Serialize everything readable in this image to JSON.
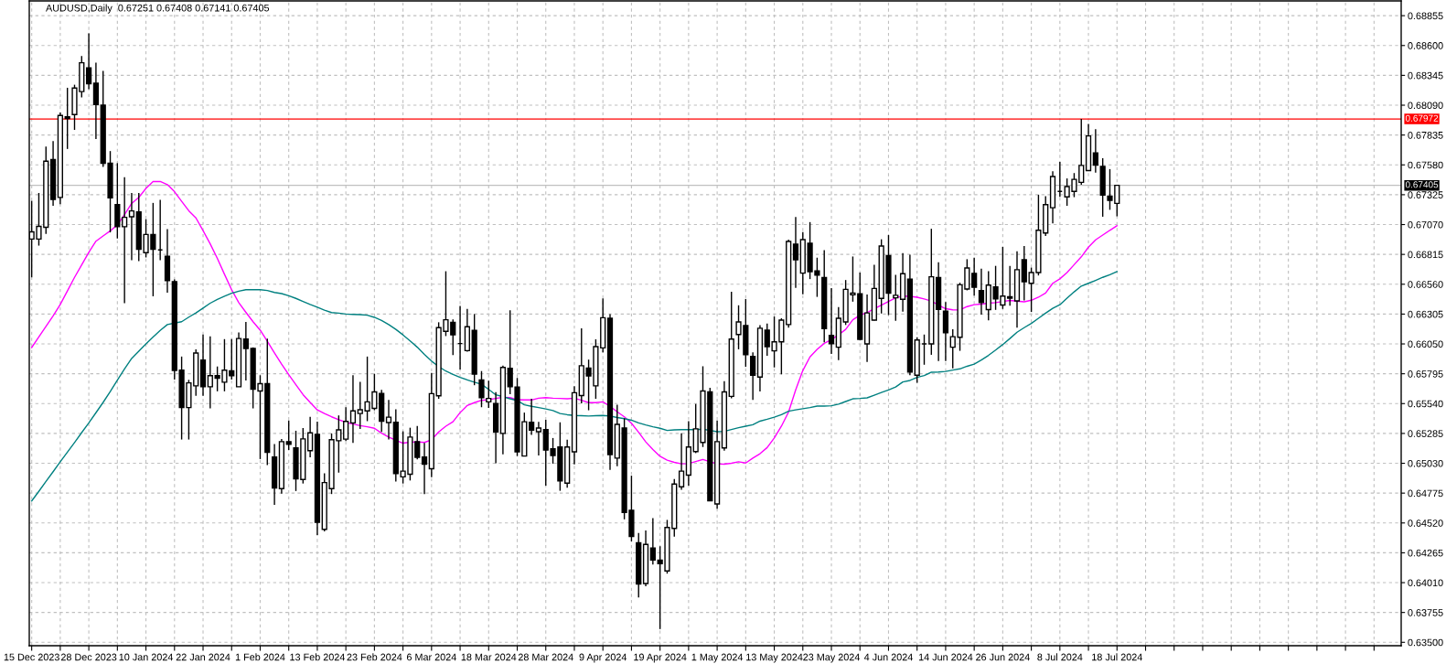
{
  "chart_data": {
    "type": "candlestick",
    "annotations": [
      "AUDUSD,Daily  0.67251 0.67408 0.67141 0.67405"
    ],
    "categories": [
      "15 Dec 2023",
      null,
      null,
      null,
      null,
      null,
      null,
      null,
      "28 Dec 2023",
      null,
      null,
      null,
      null,
      null,
      null,
      null,
      "10 Jan 2024",
      null,
      null,
      null,
      null,
      null,
      null,
      null,
      "22 Jan 2024",
      null,
      null,
      null,
      null,
      null,
      null,
      null,
      "1 Feb 2024",
      null,
      null,
      null,
      null,
      null,
      null,
      null,
      "13 Feb 2024",
      null,
      null,
      null,
      null,
      null,
      null,
      null,
      "23 Feb 2024",
      null,
      null,
      null,
      null,
      null,
      null,
      null,
      "6 Mar 2024",
      null,
      null,
      null,
      null,
      null,
      null,
      null,
      "18 Mar 2024",
      null,
      null,
      null,
      null,
      null,
      null,
      null,
      "28 Mar 2024",
      null,
      null,
      null,
      null,
      null,
      null,
      null,
      "9 Apr 2024",
      null,
      null,
      null,
      null,
      null,
      null,
      null,
      "19 Apr 2024",
      null,
      null,
      null,
      null,
      null,
      null,
      null,
      "1 May 2024",
      null,
      null,
      null,
      null,
      null,
      null,
      null,
      "13 May 2024",
      null,
      null,
      null,
      null,
      null,
      null,
      null,
      "23 May 2024",
      null,
      null,
      null,
      null,
      null,
      null,
      null,
      "4 Jun 2024",
      null,
      null,
      null,
      null,
      null,
      null,
      null,
      "14 Jun 2024",
      null,
      null,
      null,
      null,
      null,
      null,
      null,
      "26 Jun 2024",
      null,
      null,
      null,
      null,
      null,
      null,
      null,
      "8 Jul 2024",
      null,
      null,
      null,
      null,
      null,
      null,
      null,
      "18 Jul 2024",
      null,
      null,
      null,
      null,
      null,
      null,
      null,
      null,
      null,
      null,
      null,
      null,
      null,
      null,
      null,
      null,
      null,
      null,
      null,
      null,
      null,
      null,
      null,
      null,
      null,
      null,
      null,
      null,
      null,
      null,
      null,
      null,
      null,
      null,
      null,
      null,
      null,
      null,
      null
    ],
    "ohlc": [
      [
        0.66946,
        0.67273,
        0.66619,
        0.67008
      ],
      [
        0.66946,
        0.6734,
        0.6689,
        0.67054
      ],
      [
        0.67047,
        0.67737,
        0.6699,
        0.67611
      ],
      [
        0.67626,
        0.67783,
        0.6723,
        0.67284
      ],
      [
        0.67302,
        0.68028,
        0.67245,
        0.68002
      ],
      [
        0.6799,
        0.68239,
        0.67716,
        0.67977
      ],
      [
        0.6801,
        0.68265,
        0.67879,
        0.68237
      ],
      [
        0.68206,
        0.6851,
        0.68157,
        0.68453
      ],
      [
        0.68409,
        0.68703,
        0.68226,
        0.68273
      ],
      [
        0.68278,
        0.68453,
        0.67801,
        0.68095
      ],
      [
        0.6809,
        0.68384,
        0.67562,
        0.67593
      ],
      [
        0.67595,
        0.67698,
        0.67003,
        0.67299
      ],
      [
        0.6724,
        0.67595,
        0.66951,
        0.67052
      ],
      [
        0.67052,
        0.67474,
        0.66398,
        0.67132
      ],
      [
        0.67137,
        0.6734,
        0.66766,
        0.67186
      ],
      [
        0.67178,
        0.6734,
        0.66758,
        0.66859
      ],
      [
        0.6683,
        0.67116,
        0.66789,
        0.66985
      ],
      [
        0.66985,
        0.67255,
        0.66457,
        0.66859
      ],
      [
        0.66853,
        0.67281,
        0.66766,
        0.66853
      ],
      [
        0.66799,
        0.67031,
        0.66488,
        0.66591
      ],
      [
        0.66583,
        0.66601,
        0.65746,
        0.65823
      ],
      [
        0.65826,
        0.65942,
        0.65233,
        0.65506
      ],
      [
        0.65506,
        0.65743,
        0.65233,
        0.65717
      ],
      [
        0.65692,
        0.66003,
        0.65607,
        0.65972
      ],
      [
        0.65911,
        0.6613,
        0.65607,
        0.65684
      ],
      [
        0.65684,
        0.66114,
        0.65499,
        0.65779
      ],
      [
        0.65779,
        0.65857,
        0.65645,
        0.65756
      ],
      [
        0.65723,
        0.66091,
        0.65645,
        0.65826
      ],
      [
        0.65821,
        0.66091,
        0.65746,
        0.65779
      ],
      [
        0.65684,
        0.66148,
        0.65684,
        0.66096
      ],
      [
        0.66091,
        0.66238,
        0.65738,
        0.66011
      ],
      [
        0.66011,
        0.6602,
        0.65499,
        0.65663
      ],
      [
        0.65648,
        0.65782,
        0.65066,
        0.6571
      ],
      [
        0.6571,
        0.66096,
        0.65014,
        0.65123
      ],
      [
        0.65084,
        0.65195,
        0.64674,
        0.64819
      ],
      [
        0.64813,
        0.65238,
        0.6477,
        0.65215
      ],
      [
        0.65215,
        0.65396,
        0.65143,
        0.65192
      ],
      [
        0.65161,
        0.65308,
        0.64793,
        0.64896
      ],
      [
        0.64891,
        0.65331,
        0.64857,
        0.65238
      ],
      [
        0.65138,
        0.65427,
        0.65081,
        0.6529
      ],
      [
        0.65277,
        0.65385,
        0.64417,
        0.64525
      ],
      [
        0.64466,
        0.64945,
        0.64448,
        0.64865
      ],
      [
        0.64813,
        0.65285,
        0.64767,
        0.65231
      ],
      [
        0.65223,
        0.65439,
        0.6495,
        0.65316
      ],
      [
        0.65236,
        0.65509,
        0.6522,
        0.65388
      ],
      [
        0.65375,
        0.65782,
        0.65205,
        0.65478
      ],
      [
        0.65455,
        0.65725,
        0.65323,
        0.65488
      ],
      [
        0.65478,
        0.65942,
        0.6539,
        0.65555
      ],
      [
        0.65499,
        0.65795,
        0.65483,
        0.6564
      ],
      [
        0.65627,
        0.65658,
        0.65298,
        0.6539
      ],
      [
        0.65378,
        0.65571,
        0.65233,
        0.65424
      ],
      [
        0.6538,
        0.65491,
        0.64873,
        0.64942
      ],
      [
        0.64914,
        0.65303,
        0.64857,
        0.64963
      ],
      [
        0.64937,
        0.65334,
        0.64883,
        0.65254
      ],
      [
        0.65215,
        0.65349,
        0.65063,
        0.65081
      ],
      [
        0.65084,
        0.65205,
        0.64767,
        0.65022
      ],
      [
        0.64983,
        0.65803,
        0.64911,
        0.65625
      ],
      [
        0.65607,
        0.66235,
        0.65581,
        0.66189
      ],
      [
        0.66158,
        0.66671,
        0.66117,
        0.66256
      ],
      [
        0.66235,
        0.66259,
        0.65955,
        0.66127
      ],
      [
        0.66053,
        0.66375,
        0.65831,
        0.66053
      ],
      [
        0.65993,
        0.66349,
        0.65983,
        0.66197
      ],
      [
        0.66166,
        0.66305,
        0.65697,
        0.65792
      ],
      [
        0.65741,
        0.65818,
        0.65509,
        0.65591
      ],
      [
        0.65555,
        0.65736,
        0.65504,
        0.65584
      ],
      [
        0.6554,
        0.65638,
        0.6503,
        0.65298
      ],
      [
        0.65285,
        0.65864,
        0.65107,
        0.65849
      ],
      [
        0.65841,
        0.66338,
        0.6562,
        0.65684
      ],
      [
        0.65682,
        0.65759,
        0.65092,
        0.65128
      ],
      [
        0.65092,
        0.65463,
        0.65092,
        0.65385
      ],
      [
        0.6538,
        0.65581,
        0.65272,
        0.65313
      ],
      [
        0.653,
        0.65383,
        0.65097,
        0.65331
      ],
      [
        0.65318,
        0.65401,
        0.64839,
        0.65143
      ],
      [
        0.65154,
        0.65246,
        0.65027,
        0.65097
      ],
      [
        0.65169,
        0.6538,
        0.64795,
        0.6488
      ],
      [
        0.6486,
        0.65231,
        0.64821,
        0.65169
      ],
      [
        0.65128,
        0.65689,
        0.6502,
        0.65633
      ],
      [
        0.65609,
        0.66184,
        0.65542,
        0.65864
      ],
      [
        0.65844,
        0.65916,
        0.65483,
        0.65777
      ],
      [
        0.65692,
        0.66089,
        0.65581,
        0.66027
      ],
      [
        0.66016,
        0.66439,
        0.65978,
        0.66274
      ],
      [
        0.66269,
        0.66305,
        0.64973,
        0.65105
      ],
      [
        0.65074,
        0.6553,
        0.65004,
        0.65362
      ],
      [
        0.65331,
        0.65414,
        0.64551,
        0.6461
      ],
      [
        0.64628,
        0.64924,
        0.64363,
        0.64404
      ],
      [
        0.6435,
        0.64435,
        0.63884,
        0.63999
      ],
      [
        0.64002,
        0.64455,
        0.63979,
        0.64337
      ],
      [
        0.64306,
        0.64561,
        0.64164,
        0.64203
      ],
      [
        0.64203,
        0.64321,
        0.63613,
        0.64172
      ],
      [
        0.6411,
        0.64546,
        0.64087,
        0.64481
      ],
      [
        0.64473,
        0.64896,
        0.64404,
        0.64852
      ],
      [
        0.64829,
        0.65287,
        0.64803,
        0.64963
      ],
      [
        0.64929,
        0.6539,
        0.64839,
        0.65169
      ],
      [
        0.6513,
        0.65537,
        0.65117,
        0.65324
      ],
      [
        0.65208,
        0.65859,
        0.65169,
        0.65648
      ],
      [
        0.6564,
        0.65676,
        0.6471,
        0.6471
      ],
      [
        0.64682,
        0.65396,
        0.64641,
        0.65215
      ],
      [
        0.65161,
        0.65731,
        0.65138,
        0.6564
      ],
      [
        0.65602,
        0.66496,
        0.65586,
        0.66091
      ],
      [
        0.6613,
        0.6638,
        0.66004,
        0.66238
      ],
      [
        0.66207,
        0.66434,
        0.65854,
        0.65957
      ],
      [
        0.65944,
        0.65978,
        0.65571,
        0.65782
      ],
      [
        0.65767,
        0.6621,
        0.65643,
        0.66184
      ],
      [
        0.66168,
        0.66225,
        0.65949,
        0.66027
      ],
      [
        0.65991,
        0.66284,
        0.65849,
        0.66068
      ],
      [
        0.66068,
        0.66269,
        0.6579,
        0.66253
      ],
      [
        0.66215,
        0.66941,
        0.66189,
        0.66926
      ],
      [
        0.66903,
        0.67134,
        0.66529,
        0.66769
      ],
      [
        0.66655,
        0.67006,
        0.66475,
        0.66941
      ],
      [
        0.6691,
        0.67091,
        0.66604,
        0.66668
      ],
      [
        0.66673,
        0.66787,
        0.66452,
        0.66637
      ],
      [
        0.66617,
        0.66851,
        0.66063,
        0.66181
      ],
      [
        0.66122,
        0.66526,
        0.65965,
        0.66052
      ],
      [
        0.66022,
        0.66364,
        0.65911,
        0.66269
      ],
      [
        0.66238,
        0.66596,
        0.66212,
        0.66516
      ],
      [
        0.6647,
        0.66797,
        0.66411,
        0.66485
      ],
      [
        0.66478,
        0.6666,
        0.66085,
        0.66089
      ],
      [
        0.6605,
        0.66472,
        0.65895,
        0.66315
      ],
      [
        0.66253,
        0.66727,
        0.6625,
        0.66524
      ],
      [
        0.66439,
        0.66944,
        0.6631,
        0.66887
      ],
      [
        0.66805,
        0.6698,
        0.66297,
        0.66483
      ],
      [
        0.66444,
        0.6664,
        0.66248,
        0.66465
      ],
      [
        0.66431,
        0.66825,
        0.66326,
        0.6665
      ],
      [
        0.66604,
        0.66812,
        0.65782,
        0.6581
      ],
      [
        0.65782,
        0.66107,
        0.65718,
        0.66083
      ],
      [
        0.6605,
        0.6613,
        0.65872,
        0.6605
      ],
      [
        0.6605,
        0.67034,
        0.65957,
        0.66624
      ],
      [
        0.66617,
        0.66748,
        0.65903,
        0.66344
      ],
      [
        0.66331,
        0.66408,
        0.65903,
        0.66145
      ],
      [
        0.66022,
        0.66176,
        0.65841,
        0.66112
      ],
      [
        0.66107,
        0.66573,
        0.65991,
        0.66555
      ],
      [
        0.66519,
        0.66774,
        0.66508,
        0.66699
      ],
      [
        0.66653,
        0.66787,
        0.66462,
        0.66534
      ],
      [
        0.66506,
        0.66694,
        0.663,
        0.66403
      ],
      [
        0.66343,
        0.66671,
        0.66251,
        0.66552
      ],
      [
        0.66537,
        0.66717,
        0.66341,
        0.66434
      ],
      [
        0.66382,
        0.66879,
        0.66349,
        0.66459
      ],
      [
        0.66454,
        0.66717,
        0.66377,
        0.66441
      ],
      [
        0.66418,
        0.66841,
        0.66189,
        0.66684
      ],
      [
        0.66769,
        0.66887,
        0.66421,
        0.66581
      ],
      [
        0.66568,
        0.66702,
        0.66323,
        0.6666
      ],
      [
        0.6666,
        0.67325,
        0.66635,
        0.67021
      ],
      [
        0.66998,
        0.67312,
        0.66972,
        0.6724
      ],
      [
        0.67214,
        0.67526,
        0.6708,
        0.6748
      ],
      [
        0.67353,
        0.67606,
        0.67307,
        0.67353
      ],
      [
        0.67307,
        0.67464,
        0.6723,
        0.67395
      ],
      [
        0.67353,
        0.6751,
        0.67304,
        0.67456
      ],
      [
        0.67431,
        0.67972,
        0.6741,
        0.67575
      ],
      [
        0.67531,
        0.6793,
        0.67531,
        0.67827
      ],
      [
        0.67683,
        0.67884,
        0.67513,
        0.67577
      ],
      [
        0.67567,
        0.67637,
        0.67137,
        0.67322
      ],
      [
        0.67312,
        0.67544,
        0.67196,
        0.67276
      ],
      [
        0.67251,
        0.67408,
        0.67141,
        0.67405
      ],
      null,
      null,
      null,
      null,
      null,
      null,
      null,
      null,
      null,
      null,
      null,
      null,
      null,
      null,
      null,
      null,
      null,
      null,
      null,
      null,
      null,
      null,
      null,
      null,
      null,
      null,
      null,
      null,
      null,
      null,
      null,
      null,
      null,
      null,
      null,
      null,
      null,
      null,
      null
    ],
    "series": [
      {
        "type": "line",
        "color": "#ff00ff",
        "values": [
          0.66019,
          0.66109,
          0.66199,
          0.66289,
          0.66387,
          0.66503,
          0.66619,
          0.66725,
          0.66833,
          0.66928,
          0.66972,
          0.67016,
          0.67067,
          0.67155,
          0.6725,
          0.67302,
          0.67379,
          0.67438,
          0.67438,
          0.67412,
          0.67351,
          0.67268,
          0.67188,
          0.67127,
          0.67018,
          0.66905,
          0.66781,
          0.66645,
          0.66513,
          0.66403,
          0.6632,
          0.6624,
          0.66168,
          0.66073,
          0.65973,
          0.65877,
          0.65787,
          0.65702,
          0.65617,
          0.6555,
          0.65486,
          0.65455,
          0.65427,
          0.65403,
          0.6538,
          0.65365,
          0.65352,
          0.65342,
          0.65329,
          0.65287,
          0.65254,
          0.65226,
          0.65202,
          0.6521,
          0.65213,
          0.65208,
          0.65231,
          0.65298,
          0.65347,
          0.65385,
          0.65463,
          0.65524,
          0.65548,
          0.65568,
          0.65573,
          0.65584,
          0.65594,
          0.65591,
          0.65573,
          0.65571,
          0.65571,
          0.65586,
          0.65591,
          0.65586,
          0.65584,
          0.65581,
          0.65586,
          0.65568,
          0.65548,
          0.65548,
          0.65555,
          0.65517,
          0.6547,
          0.65427,
          0.65372,
          0.65295,
          0.65213,
          0.65148,
          0.65089,
          0.65056,
          0.65038,
          0.65025,
          0.65027,
          0.65045,
          0.65063,
          0.65043,
          0.65025,
          0.65022,
          0.6503,
          0.65043,
          0.65032,
          0.65074,
          0.65112,
          0.65164,
          0.65246,
          0.65347,
          0.65468,
          0.65658,
          0.65823,
          0.65939,
          0.66004,
          0.66055,
          0.66086,
          0.66127,
          0.66174,
          0.66256,
          0.66295,
          0.66318,
          0.66351,
          0.66382,
          0.66413,
          0.66444,
          0.66459,
          0.66457,
          0.66449,
          0.66434,
          0.66416,
          0.66382,
          0.66351,
          0.66341,
          0.6634,
          0.66369,
          0.66385,
          0.6639,
          0.66398,
          0.66403,
          0.66413,
          0.66421,
          0.66416,
          0.6641,
          0.66423,
          0.66449,
          0.66485,
          0.66568,
          0.66606,
          0.6666,
          0.66727,
          0.66794,
          0.66877,
          0.66939,
          0.6698,
          0.67021,
          0.6706,
          null,
          null,
          null,
          null,
          null,
          null,
          null,
          null,
          null,
          null,
          null,
          null,
          null,
          null,
          null,
          null,
          null,
          null,
          null,
          null,
          null,
          null,
          null,
          null,
          null,
          null,
          null,
          null,
          null,
          null,
          null,
          null,
          null,
          null,
          null,
          null,
          null,
          null,
          null
        ]
      },
      {
        "type": "line",
        "color": "#008080",
        "values": [
          0.64708,
          0.6479,
          0.64875,
          0.64958,
          0.65043,
          0.65125,
          0.65207,
          0.65292,
          0.65375,
          0.65462,
          0.6555,
          0.65643,
          0.65741,
          0.65836,
          0.65926,
          0.65988,
          0.6605,
          0.66109,
          0.66166,
          0.66215,
          0.66228,
          0.6624,
          0.66279,
          0.66315,
          0.66356,
          0.66398,
          0.66431,
          0.66457,
          0.66483,
          0.66501,
          0.66513,
          0.66513,
          0.66513,
          0.66506,
          0.6649,
          0.6648,
          0.66462,
          0.66439,
          0.66413,
          0.66387,
          0.66364,
          0.66338,
          0.66318,
          0.66313,
          0.66305,
          0.66302,
          0.663,
          0.66295,
          0.66277,
          0.66251,
          0.66215,
          0.66174,
          0.66127,
          0.66076,
          0.66022,
          0.6596,
          0.65903,
          0.65857,
          0.65818,
          0.6579,
          0.65764,
          0.65743,
          0.65723,
          0.65705,
          0.65661,
          0.65615,
          0.65599,
          0.65581,
          0.65566,
          0.6553,
          0.65517,
          0.65506,
          0.65494,
          0.65481,
          0.65455,
          0.65445,
          0.65439,
          0.65437,
          0.65434,
          0.65437,
          0.65439,
          0.65434,
          0.65421,
          0.65411,
          0.65398,
          0.65375,
          0.65357,
          0.65342,
          0.65329,
          0.65311,
          0.65316,
          0.65318,
          0.65318,
          0.65318,
          0.65321,
          0.65311,
          0.653,
          0.65303,
          0.65318,
          0.65334,
          0.65347,
          0.6536,
          0.6539,
          0.65406,
          0.65424,
          0.65445,
          0.65475,
          0.65486,
          0.65496,
          0.65506,
          0.65519,
          0.65519,
          0.65522,
          0.65535,
          0.65558,
          0.65581,
          0.65584,
          0.65589,
          0.65612,
          0.65635,
          0.65656,
          0.65682,
          0.65725,
          0.65738,
          0.65764,
          0.65779,
          0.65808,
          0.6581,
          0.65815,
          0.65826,
          0.65837,
          0.65859,
          0.65877,
          0.65913,
          0.65952,
          0.65998,
          0.66045,
          0.66096,
          0.6615,
          0.66189,
          0.66225,
          0.66269,
          0.66313,
          0.66354,
          0.66385,
          0.66441,
          0.66495,
          0.66544,
          0.66568,
          0.66593,
          0.66619,
          0.66642,
          0.66668,
          null,
          null,
          null,
          null,
          null,
          null,
          null,
          null,
          null,
          null,
          null,
          null,
          null,
          null,
          null,
          null,
          null,
          null,
          null,
          null,
          null,
          null,
          null,
          null,
          null,
          null,
          null,
          null,
          null,
          null,
          null,
          null,
          null,
          null,
          null,
          null,
          null,
          null,
          null
        ]
      }
    ],
    "ylim": [
      0.63471,
      0.68981
    ],
    "yticks": [
      {
        "value": 0.635,
        "label": "0.63500"
      },
      {
        "value": 0.63755,
        "label": "0.63755"
      },
      {
        "value": 0.6401,
        "label": "0.64010"
      },
      {
        "value": 0.64265,
        "label": "0.64265"
      },
      {
        "value": 0.6452,
        "label": "0.64520"
      },
      {
        "value": 0.64775,
        "label": "0.64775"
      },
      {
        "value": 0.6503,
        "label": "0.65030"
      },
      {
        "value": 0.65285,
        "label": "0.65285"
      },
      {
        "value": 0.6554,
        "label": "0.65540"
      },
      {
        "value": 0.65795,
        "label": "0.65795"
      },
      {
        "value": 0.6605,
        "label": "0.66050"
      },
      {
        "value": 0.66305,
        "label": "0.66305"
      },
      {
        "value": 0.6656,
        "label": "0.66560"
      },
      {
        "value": 0.66815,
        "label": "0.66815"
      },
      {
        "value": 0.6707,
        "label": "0.67070"
      },
      {
        "value": 0.67325,
        "label": "0.67325"
      },
      {
        "value": 0.6758,
        "label": "0.67580"
      },
      {
        "value": 0.67835,
        "label": "0.67835"
      },
      {
        "value": 0.6809,
        "label": "0.68090"
      },
      {
        "value": 0.68345,
        "label": "0.68345"
      },
      {
        "value": 0.686,
        "label": "0.68600"
      },
      {
        "value": 0.68855,
        "label": "0.68855"
      }
    ],
    "ref_lines": [
      {
        "axis": "y",
        "value": 0.67972,
        "label": "0.67972",
        "color": "#ff0000"
      },
      {
        "axis": "y",
        "value": 0.67405,
        "label": "0.67405",
        "color": "#c0c0c0"
      }
    ],
    "grid": true
  }
}
